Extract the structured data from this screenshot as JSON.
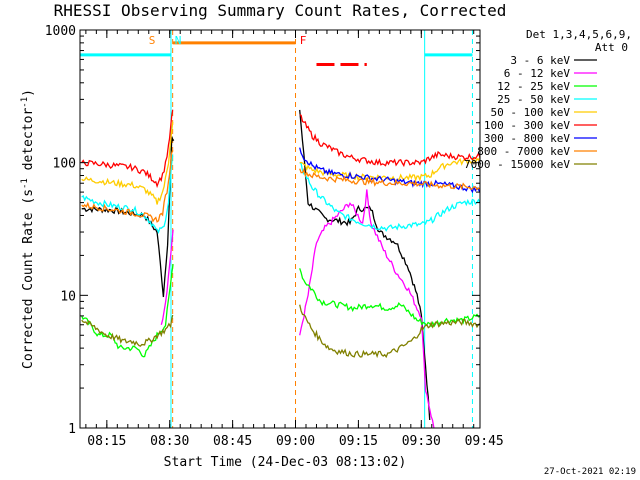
{
  "chart_data": {
    "type": "line",
    "title": "RHESSI Observing Summary Count Rates, Corrected",
    "xlabel": "Start Time (24-Dec-03 08:13:02)",
    "ylabel_main": "Corrected Count Rate (s",
    "ylabel_sup1": "-1",
    "ylabel_mid": " detector",
    "ylabel_sup2": "-1",
    "ylabel_end": ")",
    "yscale": "log",
    "ylim": [
      1,
      1000
    ],
    "xlim_minutes": [
      8.6,
      104
    ],
    "x_tick_labels": [
      "08:15",
      "08:30",
      "08:45",
      "09:00",
      "09:15",
      "09:30",
      "09:45"
    ],
    "x_tick_minutes": [
      15,
      30,
      45,
      60,
      75,
      90,
      105
    ],
    "y_tick_labels": [
      "1",
      "10",
      "100",
      "1000"
    ],
    "y_tick_values": [
      1,
      10,
      100,
      1000
    ],
    "legend_header": [
      "Det 1,3,4,5,6,9,",
      "Att 0"
    ],
    "series": [
      {
        "name": "3 - 6 keV",
        "color": "#000000",
        "points": [
          [
            9,
            45
          ],
          [
            16,
            44
          ],
          [
            24,
            40
          ],
          [
            27,
            30
          ],
          [
            28.5,
            10
          ],
          [
            29.5,
            25
          ],
          [
            30,
            60
          ],
          [
            30.5,
            150
          ],
          [
            31,
            150
          ],
          [
            61,
            250
          ],
          [
            63,
            50
          ],
          [
            67,
            38
          ],
          [
            73,
            35
          ],
          [
            75,
            45
          ],
          [
            78,
            45
          ],
          [
            80,
            30
          ],
          [
            84,
            25
          ],
          [
            87,
            16
          ],
          [
            89,
            10
          ],
          [
            90,
            7
          ],
          [
            91,
            3
          ],
          [
            92,
            1.2
          ]
        ]
      },
      {
        "name": "6 - 12 keV",
        "color": "#ff00ff",
        "points": [
          [
            28,
            6
          ],
          [
            29,
            9
          ],
          [
            29.7,
            14
          ],
          [
            30.2,
            20
          ],
          [
            30.8,
            30
          ],
          [
            61,
            5
          ],
          [
            63,
            10
          ],
          [
            65,
            25
          ],
          [
            67,
            32
          ],
          [
            70,
            40
          ],
          [
            73,
            50
          ],
          [
            76,
            35
          ],
          [
            77,
            60
          ],
          [
            78,
            35
          ],
          [
            81,
            22
          ],
          [
            84,
            15
          ],
          [
            87,
            11
          ],
          [
            89,
            8
          ],
          [
            90,
            7
          ],
          [
            91,
            2
          ],
          [
            93,
            1
          ]
        ]
      },
      {
        "name": "12 - 25 keV",
        "color": "#00ff00",
        "points": [
          [
            9,
            7
          ],
          [
            11,
            6
          ],
          [
            13,
            5
          ],
          [
            16,
            5
          ],
          [
            18,
            4
          ],
          [
            22,
            4
          ],
          [
            24,
            3.5
          ],
          [
            27,
            5
          ],
          [
            29,
            6
          ],
          [
            30.2,
            12
          ],
          [
            30.8,
            18
          ],
          [
            61,
            16
          ],
          [
            62,
            13
          ],
          [
            64,
            11
          ],
          [
            66,
            9
          ],
          [
            70,
            8.5
          ],
          [
            74,
            8
          ],
          [
            78,
            8.5
          ],
          [
            82,
            8
          ],
          [
            85,
            8.5
          ],
          [
            88,
            7
          ],
          [
            89,
            6.5
          ],
          [
            92,
            6
          ],
          [
            96,
            6.5
          ],
          [
            100,
            6.5
          ],
          [
            104,
            7
          ]
        ]
      },
      {
        "name": "25 - 50 keV",
        "color": "#00ffff",
        "points": [
          [
            9,
            55
          ],
          [
            13,
            50
          ],
          [
            17,
            47
          ],
          [
            21,
            45
          ],
          [
            24,
            40
          ],
          [
            26,
            34
          ],
          [
            27,
            30
          ],
          [
            28.3,
            32
          ],
          [
            29,
            38
          ],
          [
            29.7,
            50
          ],
          [
            30.2,
            80
          ],
          [
            30.7,
            110
          ],
          [
            61,
            100
          ],
          [
            62,
            85
          ],
          [
            64,
            65
          ],
          [
            66,
            55
          ],
          [
            68,
            48
          ],
          [
            70,
            42
          ],
          [
            73,
            38
          ],
          [
            76,
            35
          ],
          [
            79,
            33
          ],
          [
            82,
            32
          ],
          [
            85,
            33
          ],
          [
            88,
            34
          ],
          [
            90,
            34
          ],
          [
            92,
            36
          ],
          [
            94,
            40
          ],
          [
            97,
            46
          ],
          [
            100,
            50
          ],
          [
            104,
            52
          ]
        ]
      },
      {
        "name": "50 - 100 keV",
        "color": "#ffcc00",
        "points": [
          [
            9,
            75
          ],
          [
            13,
            73
          ],
          [
            17,
            70
          ],
          [
            21,
            68
          ],
          [
            24,
            63
          ],
          [
            26,
            55
          ],
          [
            27,
            50
          ],
          [
            28.3,
            60
          ],
          [
            29,
            75
          ],
          [
            29.7,
            100
          ],
          [
            30.2,
            150
          ],
          [
            30.7,
            200
          ],
          [
            61,
            100
          ],
          [
            62,
            95
          ],
          [
            64,
            88
          ],
          [
            68,
            82
          ],
          [
            72,
            80
          ],
          [
            76,
            78
          ],
          [
            80,
            78
          ],
          [
            84,
            77
          ],
          [
            88,
            77
          ],
          [
            90,
            78
          ],
          [
            92,
            80
          ],
          [
            94,
            90
          ],
          [
            97,
            100
          ],
          [
            100,
            102
          ],
          [
            104,
            105
          ]
        ]
      },
      {
        "name": "100 - 300 keV",
        "color": "#ff0000",
        "points": [
          [
            9,
            100
          ],
          [
            13,
            98
          ],
          [
            17,
            95
          ],
          [
            21,
            92
          ],
          [
            24,
            85
          ],
          [
            26,
            75
          ],
          [
            27,
            70
          ],
          [
            28.3,
            80
          ],
          [
            29,
            100
          ],
          [
            29.7,
            130
          ],
          [
            30.2,
            180
          ],
          [
            30.7,
            250
          ],
          [
            61,
            230
          ],
          [
            62,
            200
          ],
          [
            64,
            160
          ],
          [
            66,
            140
          ],
          [
            68,
            130
          ],
          [
            70,
            120
          ],
          [
            73,
            110
          ],
          [
            76,
            105
          ],
          [
            80,
            100
          ],
          [
            84,
            100
          ],
          [
            88,
            100
          ],
          [
            90,
            100
          ],
          [
            92,
            108
          ],
          [
            94,
            115
          ],
          [
            97,
            112
          ],
          [
            100,
            110
          ],
          [
            104,
            112
          ]
        ]
      },
      {
        "name": "300 - 800 keV",
        "color": "#0000ff",
        "points": [
          [
            61,
            130
          ],
          [
            62,
            110
          ],
          [
            64,
            95
          ],
          [
            66,
            88
          ],
          [
            68,
            84
          ],
          [
            70,
            82
          ],
          [
            73,
            80
          ],
          [
            76,
            78
          ],
          [
            79,
            76
          ],
          [
            82,
            74
          ],
          [
            85,
            72
          ],
          [
            88,
            70
          ],
          [
            90,
            70
          ],
          [
            92,
            70
          ],
          [
            96,
            68
          ],
          [
            100,
            65
          ],
          [
            104,
            62
          ]
        ]
      },
      {
        "name": "800 - 7000 keV",
        "color": "#ff8000",
        "points": [
          [
            9,
            48
          ],
          [
            13,
            46
          ],
          [
            17,
            44
          ],
          [
            21,
            42
          ],
          [
            24,
            40
          ],
          [
            26,
            38
          ],
          [
            27,
            37
          ],
          [
            28.3,
            42
          ],
          [
            29,
            55
          ],
          [
            29.7,
            70
          ],
          [
            30.2,
            100
          ],
          [
            30.7,
            130
          ],
          [
            61,
            90
          ],
          [
            62,
            85
          ],
          [
            64,
            80
          ],
          [
            68,
            76
          ],
          [
            72,
            74
          ],
          [
            76,
            72
          ],
          [
            80,
            71
          ],
          [
            84,
            70
          ],
          [
            88,
            70
          ],
          [
            90,
            69
          ],
          [
            92,
            68
          ],
          [
            96,
            67
          ],
          [
            100,
            66
          ],
          [
            104,
            65
          ]
        ]
      },
      {
        "name": "7000 - 15000 keV",
        "color": "#808000",
        "points": [
          [
            9,
            6.5
          ],
          [
            11,
            6
          ],
          [
            13,
            5.5
          ],
          [
            15,
            5
          ],
          [
            17,
            4.8
          ],
          [
            19,
            4.5
          ],
          [
            21,
            4.5
          ],
          [
            23,
            4.3
          ],
          [
            25,
            4.5
          ],
          [
            27,
            5
          ],
          [
            29,
            5.5
          ],
          [
            30.2,
            6
          ],
          [
            30.7,
            7
          ],
          [
            61,
            8.5
          ],
          [
            62,
            7
          ],
          [
            64,
            5.5
          ],
          [
            66,
            4.6
          ],
          [
            68,
            4
          ],
          [
            70,
            3.8
          ],
          [
            74,
            3.6
          ],
          [
            78,
            3.6
          ],
          [
            82,
            3.6
          ],
          [
            85,
            4
          ],
          [
            88,
            4.6
          ],
          [
            90,
            5.5
          ],
          [
            92,
            6
          ],
          [
            96,
            6.2
          ],
          [
            100,
            6.3
          ],
          [
            104,
            6
          ]
        ]
      }
    ],
    "annotations": [
      {
        "text": "S",
        "color": "#ff8000",
        "x_min": 25
      },
      {
        "text": "N",
        "color": "#00ffff",
        "x_min": 31.2
      },
      {
        "text": "F",
        "color": "#ff0000",
        "x_min": 61
      }
    ],
    "vertical_markers": [
      {
        "x_min": 8.6,
        "color": "#00ffff",
        "style": "solid"
      },
      {
        "x_min": 30.3,
        "color": "#00ffff",
        "style": "solid"
      },
      {
        "x_min": 30.7,
        "color": "#ff8000",
        "style": "dashed"
      },
      {
        "x_min": 60.0,
        "color": "#ff8000",
        "style": "dashed"
      },
      {
        "x_min": 90.8,
        "color": "#00ffff",
        "style": "solid"
      },
      {
        "x_min": 102.2,
        "color": "#00ffff",
        "style": "dashed"
      }
    ],
    "state_bars": [
      {
        "label": "SAA/night (cyan)",
        "color": "#00ffff",
        "x_start": 8.6,
        "x_end": 30.3,
        "y": 650
      },
      {
        "label": "SAA (orange)",
        "color": "#ff8000",
        "x_start": 30.7,
        "x_end": 60.0,
        "y": 800
      },
      {
        "label": "flare (red dashed)",
        "color": "#ff0000",
        "x_start": 65,
        "x_end": 77,
        "y": 550,
        "dashed": true
      },
      {
        "label": "night (cyan)",
        "color": "#00ffff",
        "x_start": 90.8,
        "x_end": 102.2,
        "y": 650
      }
    ]
  },
  "footer": {
    "date_stamp": "27-Oct-2021 02:19"
  }
}
